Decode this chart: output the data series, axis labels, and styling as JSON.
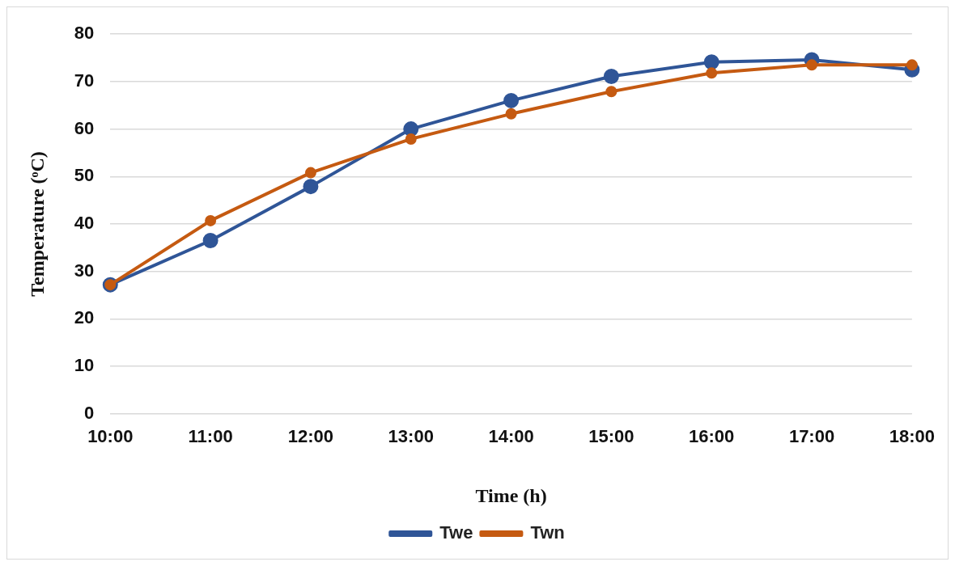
{
  "chart_data": {
    "type": "line",
    "xlabel": "Time (h)",
    "ylabel": "Temperature (ᵒC)",
    "categories": [
      "10:00",
      "11:00",
      "12:00",
      "13:00",
      "14:00",
      "15:00",
      "16:00",
      "17:00",
      "18:00"
    ],
    "series": [
      {
        "name": "Twe",
        "color": "#2f5597",
        "values": [
          27.2,
          36.5,
          47.9,
          60.0,
          66.0,
          71.1,
          74.1,
          74.6,
          72.5
        ]
      },
      {
        "name": "Twn",
        "color": "#c55a11",
        "values": [
          27.2,
          40.7,
          50.8,
          57.9,
          63.2,
          67.9,
          71.8,
          73.5,
          73.5
        ]
      }
    ],
    "ylim": [
      0,
      80
    ],
    "yticks": [
      0,
      10,
      20,
      30,
      40,
      50,
      60,
      70,
      80
    ],
    "grid": "y",
    "legend": "bottom",
    "marker": "circle",
    "line_style": "solid"
  }
}
